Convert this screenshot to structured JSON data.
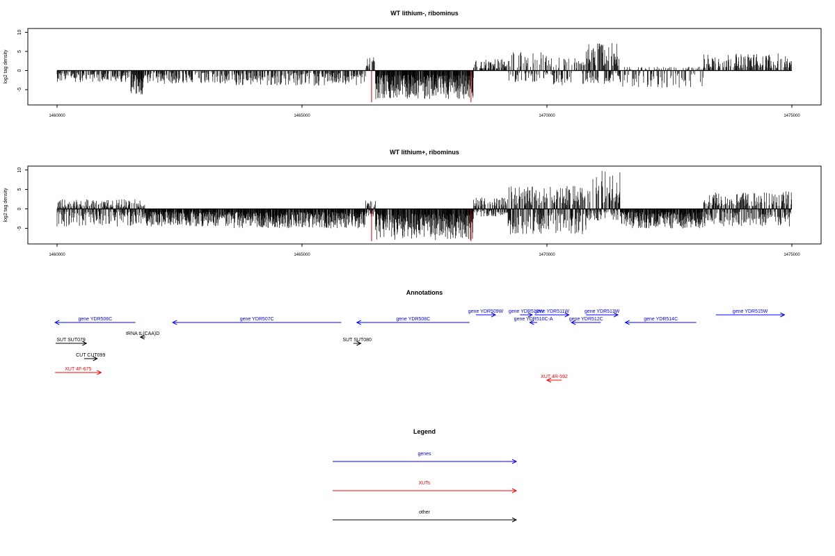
{
  "colors": {
    "axis": "#000000",
    "signal": "#000000",
    "marker": "#d00000",
    "gene": "#0000ff",
    "xut": "#ff0000",
    "other": "#000000"
  },
  "chart_data": [
    {
      "type": "bar",
      "title": "WT lithium-, ribominus",
      "ylabel": "log2 tag density",
      "xlim": [
        1460000,
        1475000
      ],
      "ylim": [
        -9,
        11
      ],
      "xticks": [
        "1460000",
        "1465000",
        "1470000",
        "1475000"
      ],
      "yticks": [
        "-5",
        "0",
        "5",
        "10"
      ],
      "profile": [
        {
          "from": 1460000,
          "to": 1461500,
          "min": -3,
          "max": 0
        },
        {
          "from": 1461500,
          "to": 1461800,
          "min": -6.5,
          "max": 0
        },
        {
          "from": 1461800,
          "to": 1463500,
          "min": -3.5,
          "max": 0
        },
        {
          "from": 1463500,
          "to": 1466300,
          "min": -4,
          "max": 0
        },
        {
          "from": 1466300,
          "to": 1466500,
          "min": -1,
          "max": 3.5
        },
        {
          "from": 1466500,
          "to": 1468500,
          "min": -7.5,
          "max": 0
        },
        {
          "from": 1468500,
          "to": 1469200,
          "min": -1,
          "max": 3
        },
        {
          "from": 1469200,
          "to": 1470000,
          "min": -3,
          "max": 5
        },
        {
          "from": 1470000,
          "to": 1470800,
          "min": -4,
          "max": 3.5
        },
        {
          "from": 1470800,
          "to": 1471500,
          "min": -3.5,
          "max": 7.5
        },
        {
          "from": 1471500,
          "to": 1473200,
          "min": -4.5,
          "max": 1
        },
        {
          "from": 1473200,
          "to": 1475000,
          "min": -0.5,
          "max": 4.5
        }
      ],
      "red_markers": [
        1466420,
        1468450
      ]
    },
    {
      "type": "bar",
      "title": "WT lithium+, ribominus",
      "ylabel": "log2 tag density",
      "xlim": [
        1460000,
        1475000
      ],
      "ylim": [
        -9,
        11
      ],
      "xticks": [
        "1460000",
        "1465000",
        "1470000",
        "1475000"
      ],
      "yticks": [
        "-5",
        "0",
        "5",
        "10"
      ],
      "profile": [
        {
          "from": 1460000,
          "to": 1461800,
          "min": -4.5,
          "max": 2.5
        },
        {
          "from": 1461800,
          "to": 1463500,
          "min": -4.5,
          "max": 0
        },
        {
          "from": 1463500,
          "to": 1466300,
          "min": -5,
          "max": 0
        },
        {
          "from": 1466300,
          "to": 1466500,
          "min": -2,
          "max": 2.5
        },
        {
          "from": 1466500,
          "to": 1468500,
          "min": -8,
          "max": 0
        },
        {
          "from": 1468500,
          "to": 1469200,
          "min": -2,
          "max": 3
        },
        {
          "from": 1469200,
          "to": 1470800,
          "min": -6.5,
          "max": 6
        },
        {
          "from": 1470800,
          "to": 1471500,
          "min": -3,
          "max": 10
        },
        {
          "from": 1471500,
          "to": 1473200,
          "min": -5,
          "max": 0.5
        },
        {
          "from": 1473200,
          "to": 1475000,
          "min": -4.5,
          "max": 4.5
        }
      ],
      "red_markers": [
        1466420,
        1468450
      ]
    }
  ],
  "annotations": {
    "title": "Annotations",
    "features": [
      {
        "label": "gene YDR506C",
        "start": 1459960,
        "end": 1461600,
        "strand": "-",
        "type": "gene",
        "row": 1
      },
      {
        "label": "gene YDR507C",
        "start": 1462360,
        "end": 1465800,
        "strand": "-",
        "type": "gene",
        "row": 1
      },
      {
        "label": "gene YDR508C",
        "start": 1466120,
        "end": 1468420,
        "strand": "-",
        "type": "gene",
        "row": 1
      },
      {
        "label": "gene YDR509W",
        "start": 1468550,
        "end": 1468950,
        "strand": "+",
        "type": "gene",
        "row": 0
      },
      {
        "label": "gene YDR510W",
        "start": 1469450,
        "end": 1469700,
        "strand": "+",
        "type": "gene",
        "row": 0
      },
      {
        "label": "gene YDR511W",
        "start": 1469750,
        "end": 1470450,
        "strand": "+",
        "type": "gene",
        "row": 0
      },
      {
        "label": "gene YDR510C-A",
        "start": 1469650,
        "end": 1469800,
        "strand": "-",
        "type": "gene",
        "row": 1
      },
      {
        "label": "gene YDR512C",
        "start": 1470500,
        "end": 1471100,
        "strand": "-",
        "type": "gene",
        "row": 1
      },
      {
        "label": "gene YDR513W",
        "start": 1470800,
        "end": 1471450,
        "strand": "+",
        "type": "gene",
        "row": 0
      },
      {
        "label": "gene YDR514C",
        "start": 1471600,
        "end": 1473050,
        "strand": "-",
        "type": "gene",
        "row": 1
      },
      {
        "label": "gene YDR515W",
        "start": 1473450,
        "end": 1474850,
        "strand": "+",
        "type": "gene",
        "row": 0
      },
      {
        "label": "tRNA tL(CAA)D",
        "start": 1461700,
        "end": 1461800,
        "strand": "-",
        "type": "other",
        "row": 2
      },
      {
        "label": "SUT SUT079",
        "start": 1459970,
        "end": 1460600,
        "strand": "+",
        "type": "other",
        "row": 3
      },
      {
        "label": "SUT SUT080",
        "start": 1466050,
        "end": 1466200,
        "strand": "+",
        "type": "other",
        "row": 3
      },
      {
        "label": "CUT CUT099",
        "start": 1460550,
        "end": 1460820,
        "strand": "+",
        "type": "other",
        "row": 4
      },
      {
        "label": "XUT 4F-675",
        "start": 1459960,
        "end": 1460900,
        "strand": "+",
        "type": "xut",
        "row": 5
      },
      {
        "label": "XUT 4R-592",
        "start": 1470000,
        "end": 1470300,
        "strand": "-",
        "type": "xut",
        "row": 6
      }
    ]
  },
  "legend": {
    "title": "Legend",
    "items": [
      {
        "label": "genes",
        "type": "gene"
      },
      {
        "label": "XUTs",
        "type": "xut"
      },
      {
        "label": "other",
        "type": "other"
      }
    ]
  }
}
